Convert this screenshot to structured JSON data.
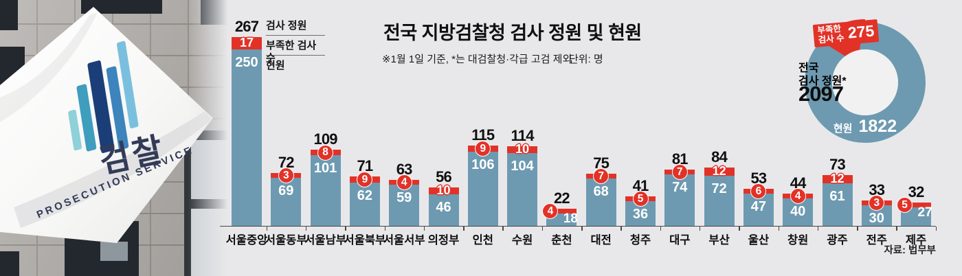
{
  "header": {
    "title": "전국 지방검찰청 검사 정원 및 현원",
    "note": "※1월 1일 기준, *는 대검찰청·각급 고검 제외",
    "unit": "단위: 명"
  },
  "legend": {
    "quota": "검사 정원",
    "shortage": "부족한 검사 수",
    "current": "현원"
  },
  "photo": {
    "flag_korean": "검찰",
    "flag_english": "PROSECUTION SERVICE"
  },
  "donut": {
    "shortage_label_line1": "부족한",
    "shortage_label_line2": "검사 수",
    "shortage_value": "275",
    "center_line1": "전국",
    "center_line2": "검사 정원*",
    "total": "2097",
    "current_label": "현원",
    "current_value": "1822"
  },
  "source": "자료: 법무부",
  "colors": {
    "bar_blue": "#6d9ab1",
    "accent_red": "#e23227",
    "background": "#e8e8ea",
    "donut_hole": "#f1f1f2"
  },
  "chart_data": [
    {
      "type": "bar",
      "stacked": true,
      "title": "전국 지방검찰청 검사 정원 및 현원",
      "note": "※1월 1일 기준, *는 대검찰청·각급 고검 제외",
      "unit": "명",
      "categories": [
        "서울중앙",
        "서울동부",
        "서울남부",
        "서울북부",
        "서울서부",
        "의정부",
        "인천",
        "수원",
        "춘천",
        "대전",
        "청주",
        "대구",
        "부산",
        "울산",
        "창원",
        "광주",
        "전주",
        "제주"
      ],
      "series": [
        {
          "name": "현원",
          "color": "#6d9ab1",
          "values": [
            250,
            69,
            101,
            62,
            59,
            46,
            106,
            104,
            18,
            68,
            36,
            74,
            72,
            47,
            40,
            61,
            30,
            27
          ]
        },
        {
          "name": "부족한 검사 수",
          "color": "#e23227",
          "values": [
            17,
            3,
            8,
            9,
            4,
            10,
            9,
            10,
            4,
            7,
            5,
            7,
            12,
            6,
            4,
            12,
            3,
            5
          ]
        }
      ],
      "totals": {
        "name": "검사 정원",
        "values": [
          267,
          72,
          109,
          71,
          63,
          56,
          115,
          114,
          22,
          75,
          41,
          81,
          84,
          53,
          44,
          73,
          33,
          32
        ]
      },
      "ylim": [
        0,
        280
      ],
      "grid": false,
      "legend_position": "top-left",
      "source": "자료: 법무부"
    },
    {
      "type": "pie",
      "subtype": "donut",
      "title": "전국 검사 정원*",
      "total": 2097,
      "slices": [
        {
          "name": "현원",
          "value": 1822,
          "color": "#6d9ab1"
        },
        {
          "name": "부족한 검사 수",
          "value": 275,
          "color": "#e23227"
        }
      ]
    }
  ]
}
